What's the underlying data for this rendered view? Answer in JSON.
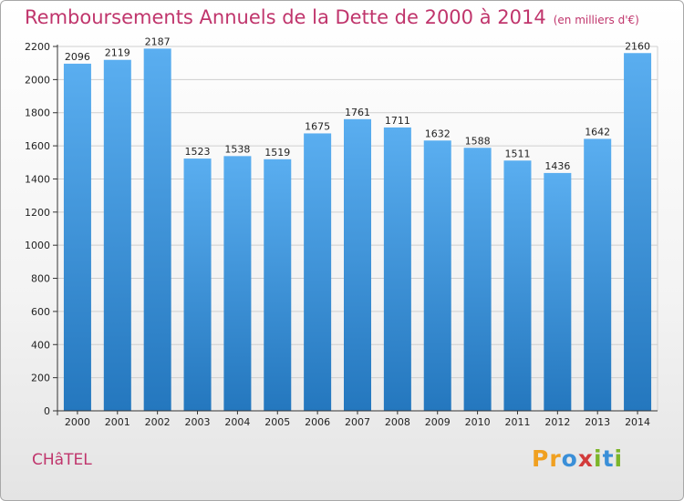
{
  "title": "Remboursements Annuels de la Dette de 2000 à 2014",
  "unit": "(en milliers d'€)",
  "city": "CHâTEL",
  "brand": {
    "text": "Proxiti",
    "letter_colors": [
      "#f0a020",
      "#f0a020",
      "#3a8fd8",
      "#d23b3b",
      "#7cb52a",
      "#3a8fd8",
      "#7cb52a"
    ]
  },
  "colors": {
    "bar_top": "#5aaef0",
    "bar_bottom": "#2477be",
    "grid": "#cfcfcf",
    "title": "#c0356c"
  },
  "chart_data": {
    "type": "bar",
    "title": "Remboursements Annuels de la Dette de 2000 à 2014",
    "xlabel": "",
    "ylabel": "",
    "categories": [
      "2000",
      "2001",
      "2002",
      "2003",
      "2004",
      "2005",
      "2006",
      "2007",
      "2008",
      "2009",
      "2010",
      "2011",
      "2012",
      "2013",
      "2014"
    ],
    "values": [
      2096,
      2119,
      2187,
      1523,
      1538,
      1519,
      1675,
      1761,
      1711,
      1632,
      1588,
      1511,
      1436,
      1642,
      2160
    ],
    "ylim": [
      0,
      2200
    ],
    "yticks": [
      0,
      200,
      400,
      600,
      800,
      1000,
      1200,
      1400,
      1600,
      1800,
      2000,
      2200
    ],
    "grid": true,
    "legend": "none"
  }
}
